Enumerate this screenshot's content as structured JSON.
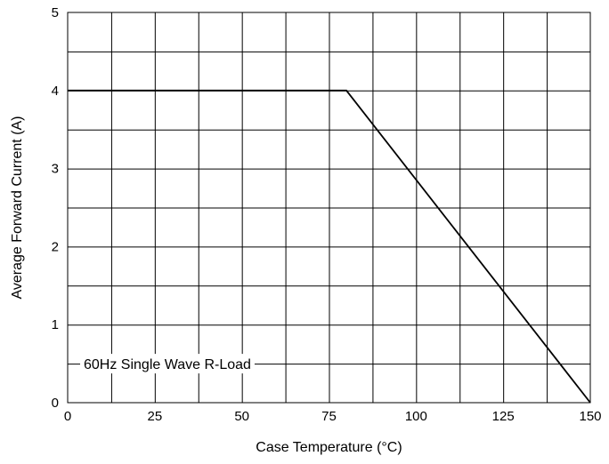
{
  "chart_data": {
    "type": "line",
    "xlabel": "Case Temperature (°C)",
    "ylabel": "Average Forward Current (A)",
    "xlim": [
      0,
      150
    ],
    "ylim": [
      0,
      5
    ],
    "x_ticks": [
      0,
      25,
      50,
      75,
      100,
      125,
      150
    ],
    "y_ticks": [
      0,
      1,
      2,
      3,
      4,
      5
    ],
    "x_tick_labels": [
      "0",
      "25",
      "50",
      "75",
      "100",
      "125",
      "150"
    ],
    "y_tick_labels": [
      "0",
      "1",
      "2",
      "3",
      "4",
      "5"
    ],
    "grid": true,
    "x_minor_gridlines": [
      12.5,
      37.5,
      62.5,
      87.5,
      112.5,
      137.5
    ],
    "y_minor_gridlines": [
      0.5,
      1.5,
      2.5,
      3.5,
      4.5
    ],
    "series": [
      {
        "x": [
          0,
          80,
          150
        ],
        "y": [
          4,
          4,
          0
        ]
      }
    ],
    "annotation": "60Hz Single Wave R-Load",
    "annotation_y": 0.5
  }
}
